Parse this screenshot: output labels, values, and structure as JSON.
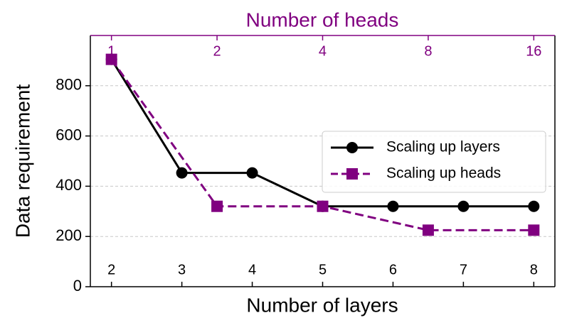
{
  "chart_data": {
    "type": "line",
    "xlabel": "Number of layers",
    "x2label": "Number of heads",
    "ylabel": "Data requirement",
    "xlim": [
      1.7,
      8.3
    ],
    "xticks": [
      2,
      3,
      4,
      5,
      6,
      7,
      8
    ],
    "x2lim": [
      0.8706,
      18.379
    ],
    "x2ticks": [
      1,
      2,
      4,
      8,
      16
    ],
    "x2scale": "log",
    "x2color": "#800080",
    "ylim": [
      0,
      1000
    ],
    "yticks": [
      0,
      200,
      400,
      600,
      800
    ],
    "grid": "y",
    "legend": "center right",
    "series": [
      {
        "name": "Scaling up layers",
        "color": "#000000",
        "linestyle": "solid",
        "marker": "circle",
        "x": [
          2,
          3,
          4,
          5,
          6,
          7,
          8
        ],
        "values": [
          905,
          453,
          453,
          320,
          320,
          320,
          320
        ]
      },
      {
        "name": "Scaling up heads",
        "color": "#800080",
        "linestyle": "dashed",
        "marker": "square",
        "axis": "x2",
        "x": [
          1,
          2,
          4,
          8,
          16
        ],
        "values": [
          905,
          320,
          320,
          225,
          225
        ]
      }
    ]
  }
}
